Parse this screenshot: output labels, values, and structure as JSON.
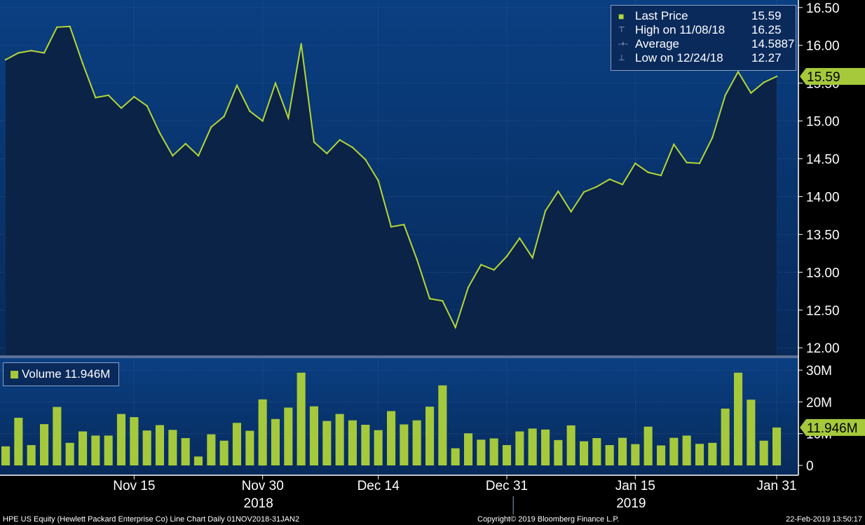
{
  "chart_data": [
    {
      "type": "line",
      "series": [
        {
          "name": "Last Price",
          "x": [
            "2018-11-01",
            "2018-11-02",
            "2018-11-05",
            "2018-11-06",
            "2018-11-07",
            "2018-11-08",
            "2018-11-09",
            "2018-11-12",
            "2018-11-13",
            "2018-11-14",
            "2018-11-15",
            "2018-11-16",
            "2018-11-19",
            "2018-11-20",
            "2018-11-21",
            "2018-11-23",
            "2018-11-26",
            "2018-11-27",
            "2018-11-28",
            "2018-11-29",
            "2018-11-30",
            "2018-12-03",
            "2018-12-04",
            "2018-12-06",
            "2018-12-07",
            "2018-12-10",
            "2018-12-11",
            "2018-12-12",
            "2018-12-13",
            "2018-12-14",
            "2018-12-17",
            "2018-12-18",
            "2018-12-19",
            "2018-12-20",
            "2018-12-21",
            "2018-12-24",
            "2018-12-26",
            "2018-12-27",
            "2018-12-28",
            "2018-12-31",
            "2019-01-02",
            "2019-01-03",
            "2019-01-04",
            "2019-01-07",
            "2019-01-08",
            "2019-01-09",
            "2019-01-10",
            "2019-01-11",
            "2019-01-14",
            "2019-01-15",
            "2019-01-16",
            "2019-01-17",
            "2019-01-18",
            "2019-01-22",
            "2019-01-23",
            "2019-01-24",
            "2019-01-25",
            "2019-01-28",
            "2019-01-29",
            "2019-01-30",
            "2019-01-31"
          ],
          "values": [
            15.81,
            15.9,
            15.93,
            15.9,
            16.24,
            16.25,
            15.76,
            15.31,
            15.34,
            15.17,
            15.32,
            15.2,
            14.84,
            14.54,
            14.7,
            14.54,
            14.92,
            15.06,
            15.47,
            15.13,
            15.0,
            15.5,
            15.04,
            16.02,
            14.72,
            14.57,
            14.75,
            14.65,
            14.49,
            14.21,
            13.6,
            13.63,
            13.17,
            12.65,
            12.62,
            12.27,
            12.8,
            13.1,
            13.03,
            13.21,
            13.45,
            13.19,
            13.81,
            14.07,
            13.8,
            14.06,
            14.13,
            14.23,
            14.16,
            14.44,
            14.32,
            14.28,
            14.69,
            14.45,
            14.44,
            14.78,
            15.34,
            15.65,
            15.37,
            15.51,
            15.59
          ]
        }
      ],
      "ylim": [
        11.9,
        16.6
      ],
      "y_ticks": [
        "16.50",
        "16.00",
        "15.50",
        "15.00",
        "14.50",
        "14.00",
        "13.50",
        "13.00",
        "12.50",
        "12.00"
      ],
      "last_value_label": "15.59",
      "legend": {
        "placement": "top-right",
        "rows": [
          {
            "label": "Last Price",
            "value": "15.59"
          },
          {
            "label": "High on 11/08/18",
            "value": "16.25"
          },
          {
            "label": "Average",
            "value": "14.5887"
          },
          {
            "label": "Low on 12/24/18",
            "value": "12.27"
          }
        ]
      },
      "colors": {
        "line": "#b5d636",
        "area": "#0b2347",
        "bg_top": "#0a3f82",
        "bg_bottom": "#072a5a"
      }
    },
    {
      "type": "bar",
      "series": [
        {
          "name": "Volume",
          "values": [
            6,
            15,
            6.4,
            13,
            18.4,
            7.1,
            10.7,
            9.4,
            9.4,
            16.2,
            15.2,
            11,
            12.7,
            11.2,
            8.6,
            2.8,
            9.8,
            7.8,
            13.4,
            10.9,
            20.8,
            14.6,
            18.2,
            29.2,
            18.6,
            14,
            16.2,
            14.2,
            12.8,
            11.1,
            17.1,
            12.9,
            14.2,
            18.5,
            25.2,
            5.4,
            10.1,
            8.1,
            8.5,
            6.4,
            10.7,
            11.6,
            11.3,
            8,
            12.6,
            7.6,
            8.6,
            6.4,
            8.7,
            6.7,
            12.2,
            6.3,
            8.7,
            9.4,
            6.8,
            7.1,
            17.9,
            29.2,
            20.7,
            7.8,
            11.946
          ]
        }
      ],
      "ylim": [
        0,
        32
      ],
      "y_ticks": [
        "30M",
        "20M",
        "10M",
        "0"
      ],
      "last_value_label": "11.946M",
      "legend_label": "Volume 11.946M",
      "colors": {
        "bar": "#a5c93b"
      }
    }
  ],
  "x_axis": {
    "ticks": [
      {
        "label": "Nov 15",
        "date": "2018-11-15"
      },
      {
        "label": "Nov 30",
        "date": "2018-11-30"
      },
      {
        "label": "Dec 14",
        "date": "2018-12-14"
      },
      {
        "label": "Dec 31",
        "date": "2018-12-31"
      },
      {
        "label": "Jan 15",
        "date": "2019-01-15"
      },
      {
        "label": "Jan 31",
        "date": "2019-01-31"
      }
    ],
    "years": [
      {
        "label": "2018",
        "date": "2018-11-30"
      },
      {
        "label": "2019",
        "date": "2019-01-15"
      }
    ]
  },
  "footer": {
    "left": "HPE US Equity (Hewlett Packard Enterprise Co) Line Chart  Daily 01NOV2018-31JAN2",
    "center": "Copyright© 2019 Bloomberg Finance L.P.",
    "right": "22-Feb-2019 13:50:17"
  }
}
